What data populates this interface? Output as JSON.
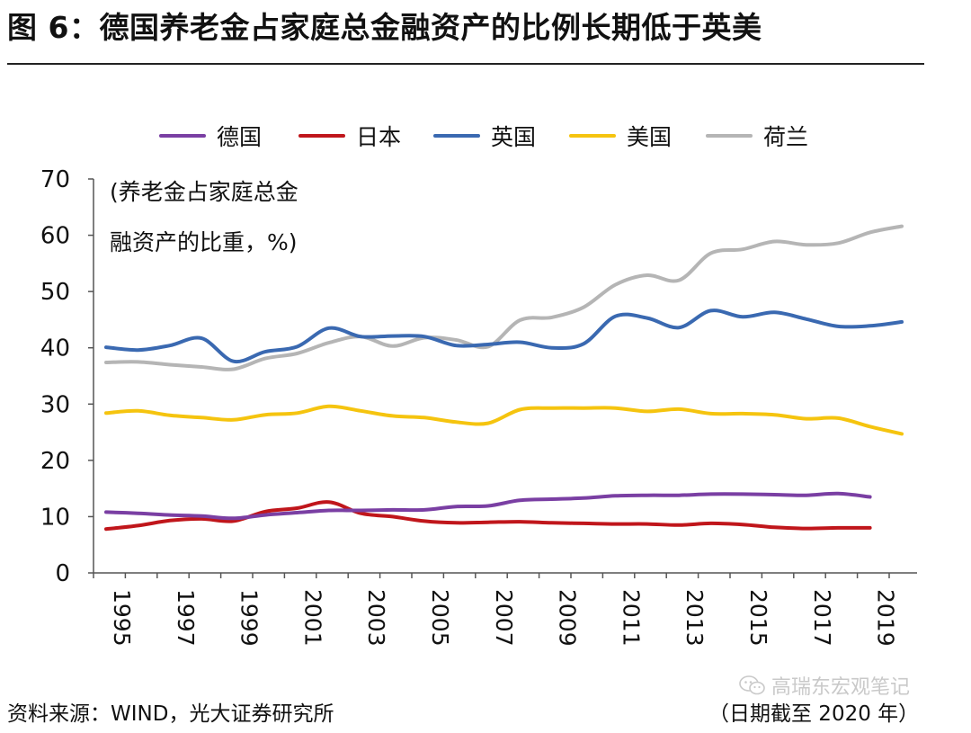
{
  "header": {
    "title": "图 6：德国养老金占家庭总金融资产的比例长期低于英美"
  },
  "chart_data": {
    "type": "line",
    "title": "图 6：德国养老金占家庭总金融资产的比例长期低于英美",
    "ylabel_lines": [
      "(养老金占家庭总金",
      "融资产的比重，%)"
    ],
    "ylim": [
      0,
      70
    ],
    "yticks": [
      0,
      10,
      20,
      30,
      40,
      50,
      60,
      70
    ],
    "xlim": [
      1995,
      2020
    ],
    "xticks": [
      "1995",
      "1997",
      "1999",
      "2001",
      "2003",
      "2005",
      "2007",
      "2009",
      "2011",
      "2013",
      "2015",
      "2017",
      "2019"
    ],
    "grid": false,
    "legend_position": "top",
    "series": [
      {
        "name": "德国",
        "color": "#7a3fa3",
        "x": [
          1995,
          1996,
          1997,
          1998,
          1999,
          2000,
          2001,
          2002,
          2003,
          2004,
          2005,
          2006,
          2007,
          2008,
          2009,
          2010,
          2011,
          2012,
          2013,
          2014,
          2015,
          2016,
          2017,
          2018,
          2019
        ],
        "y": [
          10.8,
          10.6,
          10.3,
          10.1,
          9.7,
          10.3,
          10.7,
          11.1,
          11.1,
          11.2,
          11.2,
          11.8,
          11.9,
          12.9,
          13.1,
          13.3,
          13.7,
          13.8,
          13.8,
          14.0,
          14.0,
          13.9,
          13.8,
          14.1,
          13.5
        ]
      },
      {
        "name": "日本",
        "color": "#c0161b",
        "x": [
          1995,
          1996,
          1997,
          1998,
          1999,
          2000,
          2001,
          2002,
          2003,
          2004,
          2005,
          2006,
          2007,
          2008,
          2009,
          2010,
          2011,
          2012,
          2013,
          2014,
          2015,
          2016,
          2017,
          2018,
          2019
        ],
        "y": [
          7.8,
          8.4,
          9.3,
          9.6,
          9.2,
          10.9,
          11.5,
          12.6,
          10.6,
          10.0,
          9.2,
          8.9,
          9.0,
          9.1,
          8.9,
          8.8,
          8.7,
          8.7,
          8.5,
          8.8,
          8.6,
          8.1,
          7.9,
          8.0,
          8.0
        ]
      },
      {
        "name": "英国",
        "color": "#3a69b1",
        "x": [
          1995,
          1996,
          1997,
          1998,
          1999,
          2000,
          2001,
          2002,
          2003,
          2004,
          2005,
          2006,
          2007,
          2008,
          2009,
          2010,
          2011,
          2012,
          2013,
          2014,
          2015,
          2016,
          2017,
          2018,
          2019,
          2020
        ],
        "y": [
          40.1,
          39.6,
          40.4,
          41.7,
          37.6,
          39.3,
          40.2,
          43.5,
          42.0,
          42.1,
          42.0,
          40.4,
          40.6,
          41.0,
          40.0,
          40.7,
          45.6,
          45.3,
          43.6,
          46.6,
          45.5,
          46.3,
          45.1,
          43.8,
          43.9,
          44.6
        ]
      },
      {
        "name": "美国",
        "color": "#f5c40f",
        "x": [
          1995,
          1996,
          1997,
          1998,
          1999,
          2000,
          2001,
          2002,
          2003,
          2004,
          2005,
          2006,
          2007,
          2008,
          2009,
          2010,
          2011,
          2012,
          2013,
          2014,
          2015,
          2016,
          2017,
          2018,
          2019,
          2020
        ],
        "y": [
          28.4,
          28.8,
          28.0,
          27.6,
          27.2,
          28.1,
          28.4,
          29.6,
          28.8,
          27.9,
          27.6,
          26.8,
          26.6,
          29.0,
          29.3,
          29.3,
          29.3,
          28.7,
          29.1,
          28.3,
          28.3,
          28.1,
          27.4,
          27.5,
          26.0,
          24.7
        ]
      },
      {
        "name": "荷兰",
        "color": "#b5b5b5",
        "x": [
          1995,
          1996,
          1997,
          1998,
          1999,
          2000,
          2001,
          2002,
          2003,
          2004,
          2005,
          2006,
          2007,
          2008,
          2009,
          2010,
          2011,
          2012,
          2013,
          2014,
          2015,
          2016,
          2017,
          2018,
          2019,
          2020
        ],
        "y": [
          37.4,
          37.5,
          37.0,
          36.6,
          36.2,
          38.1,
          39.0,
          40.9,
          42.0,
          40.3,
          41.8,
          41.4,
          40.2,
          44.9,
          45.4,
          47.2,
          51.2,
          52.9,
          52.0,
          56.8,
          57.5,
          58.9,
          58.3,
          58.6,
          60.5,
          61.6
        ]
      }
    ]
  },
  "footer": {
    "source": "资料来源：WIND，光大证券研究所",
    "date_note": "（日期截至 2020 年）"
  },
  "watermark": {
    "icon": "wechat-icon",
    "text": "高瑞东宏观笔记"
  }
}
